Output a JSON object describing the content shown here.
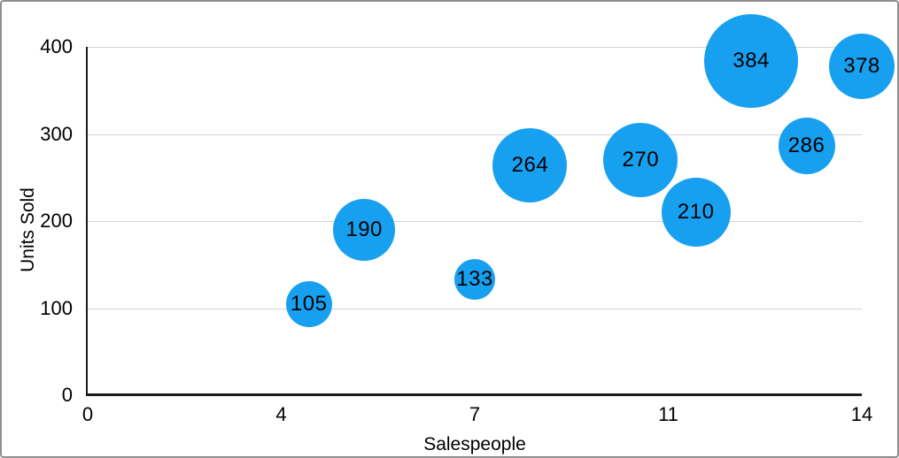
{
  "figure": {
    "background": "#ffffff",
    "border_color": "#8e8e8e"
  },
  "chart_data": {
    "type": "scatter",
    "variant": "bubble",
    "title": "",
    "xlabel": "Salespeople",
    "ylabel": "Units Sold",
    "xlim": [
      0,
      14
    ],
    "ylim": [
      0,
      400
    ],
    "grid": "horizontal-only",
    "legend": "none",
    "x_ticks": [
      {
        "label": "0",
        "value": 0
      },
      {
        "label": "4",
        "value": 3.5
      },
      {
        "label": "7",
        "value": 7
      },
      {
        "label": "11",
        "value": 10.5
      },
      {
        "label": "14",
        "value": 14
      }
    ],
    "y_ticks": [
      {
        "label": "0",
        "value": 0
      },
      {
        "label": "100",
        "value": 100
      },
      {
        "label": "200",
        "value": 200
      },
      {
        "label": "300",
        "value": 300
      },
      {
        "label": "400",
        "value": 400
      }
    ],
    "series": [
      {
        "name": "Units Sold",
        "color": "#18a0f0",
        "label_color": "#000000",
        "points": [
          {
            "x": 4,
            "y": 105,
            "label": "105",
            "radius_px": 26
          },
          {
            "x": 5,
            "y": 190,
            "label": "190",
            "radius_px": 35
          },
          {
            "x": 7,
            "y": 133,
            "label": "133",
            "radius_px": 23
          },
          {
            "x": 8,
            "y": 264,
            "label": "264",
            "radius_px": 42
          },
          {
            "x": 10,
            "y": 270,
            "label": "270",
            "radius_px": 42
          },
          {
            "x": 11,
            "y": 210,
            "label": "210",
            "radius_px": 39
          },
          {
            "x": 12,
            "y": 384,
            "label": "384",
            "radius_px": 53
          },
          {
            "x": 13,
            "y": 286,
            "label": "286",
            "radius_px": 32
          },
          {
            "x": 14,
            "y": 378,
            "label": "378",
            "radius_px": 37
          }
        ]
      }
    ],
    "colors": {
      "gridline": "#d4d4d4",
      "axis": "#1a1a1a",
      "tick_text": "#000000"
    }
  }
}
